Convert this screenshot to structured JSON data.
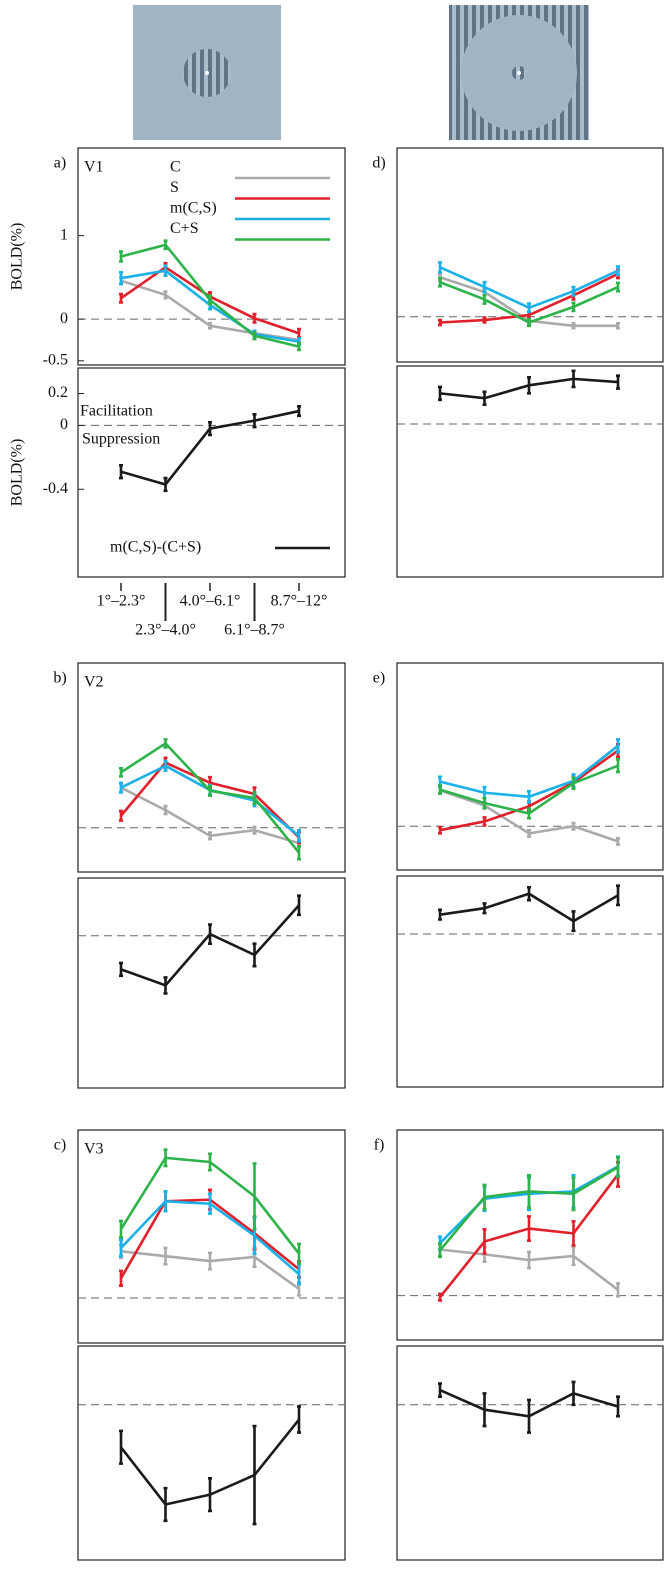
{
  "chart_data": [
    {
      "type": "line",
      "panel_label": "a)",
      "region": "V1",
      "ylabel": "BOLD(%)",
      "ylim": [
        -0.55,
        2.05
      ],
      "yticks": [
        -0.5,
        0,
        1
      ],
      "reference_line": 0,
      "series": [
        {
          "name": "C",
          "color": "#aaaaaa",
          "values": [
            0.46,
            0.29,
            -0.08,
            -0.17,
            -0.25
          ],
          "errors": [
            0.04,
            0.04,
            0.03,
            0.03,
            0.03
          ]
        },
        {
          "name": "S",
          "color": "#e0202a",
          "values": [
            0.25,
            0.62,
            0.27,
            0.01,
            -0.17
          ],
          "errors": [
            0.05,
            0.05,
            0.05,
            0.05,
            0.05
          ]
        },
        {
          "name": "m(C,S)",
          "color": "#1ab0e8",
          "values": [
            0.49,
            0.58,
            0.17,
            -0.18,
            -0.27
          ],
          "errors": [
            0.07,
            0.06,
            0.05,
            0.04,
            0.04
          ]
        },
        {
          "name": "C+S",
          "color": "#2db34a",
          "values": [
            0.75,
            0.89,
            0.23,
            -0.2,
            -0.33
          ],
          "errors": [
            0.06,
            0.05,
            0.05,
            0.04,
            0.04
          ]
        }
      ]
    },
    {
      "type": "line",
      "ylabel": "BOLD(%)",
      "ylim": [
        -0.95,
        0.36
      ],
      "yticks": [
        -0.4,
        0,
        0.2
      ],
      "reference_line": 0,
      "categories": [
        "1°–2.3°",
        "2.3°–4.0°",
        "4.0°–6.1°",
        "6.1°–8.7°",
        "8.7°–12°"
      ],
      "annotations": [
        "Facilitation",
        "Suppression"
      ],
      "series": [
        {
          "name": "m(C,S)-(C+S)",
          "color": "#1a1a1a",
          "values": [
            -0.29,
            -0.37,
            -0.02,
            0.03,
            0.09
          ],
          "errors": [
            0.04,
            0.04,
            0.04,
            0.04,
            0.03
          ]
        }
      ]
    },
    {
      "type": "line",
      "panel_label": "d)",
      "ylim": [
        -0.55,
        2.05
      ],
      "reference_line": 0,
      "series": [
        {
          "color": "#aaaaaa",
          "values": [
            0.48,
            0.3,
            -0.05,
            -0.11,
            -0.11
          ],
          "errors": [
            0.04,
            0.04,
            0.03,
            0.03,
            0.03
          ]
        },
        {
          "color": "#e0202a",
          "values": [
            -0.07,
            -0.04,
            0.02,
            0.26,
            0.52
          ],
          "errors": [
            0.03,
            0.03,
            0.04,
            0.05,
            0.05
          ]
        },
        {
          "color": "#1ab0e8",
          "values": [
            0.6,
            0.36,
            0.11,
            0.31,
            0.56
          ],
          "errors": [
            0.06,
            0.06,
            0.05,
            0.05,
            0.05
          ]
        },
        {
          "color": "#2db34a",
          "values": [
            0.42,
            0.21,
            -0.07,
            0.12,
            0.36
          ],
          "errors": [
            0.05,
            0.05,
            0.04,
            0.05,
            0.05
          ]
        }
      ]
    },
    {
      "type": "line",
      "ylim": [
        -0.95,
        0.36
      ],
      "reference_line": 0,
      "series": [
        {
          "color": "#1a1a1a",
          "values": [
            0.19,
            0.16,
            0.24,
            0.28,
            0.26
          ],
          "errors": [
            0.04,
            0.04,
            0.05,
            0.05,
            0.04
          ]
        }
      ]
    },
    {
      "type": "line",
      "panel_label": "b)",
      "region": "V2",
      "ylim": [
        -0.55,
        2.05
      ],
      "reference_line": 0,
      "series": [
        {
          "color": "#aaaaaa",
          "values": [
            0.5,
            0.22,
            -0.1,
            -0.03,
            -0.19
          ],
          "errors": [
            0.05,
            0.05,
            0.04,
            0.04,
            0.04
          ]
        },
        {
          "color": "#e0202a",
          "values": [
            0.15,
            0.81,
            0.56,
            0.42,
            -0.12
          ],
          "errors": [
            0.06,
            0.06,
            0.07,
            0.08,
            0.07
          ]
        },
        {
          "color": "#1ab0e8",
          "values": [
            0.5,
            0.77,
            0.47,
            0.34,
            -0.1
          ],
          "errors": [
            0.06,
            0.06,
            0.06,
            0.07,
            0.07
          ]
        },
        {
          "color": "#2db34a",
          "values": [
            0.69,
            1.05,
            0.46,
            0.37,
            -0.31
          ],
          "errors": [
            0.05,
            0.05,
            0.06,
            0.07,
            0.08
          ]
        }
      ]
    },
    {
      "type": "line",
      "ylim": [
        -0.95,
        0.36
      ],
      "reference_line": 0,
      "series": [
        {
          "color": "#1a1a1a",
          "values": [
            -0.21,
            -0.31,
            0.01,
            -0.12,
            0.19
          ],
          "errors": [
            0.04,
            0.05,
            0.06,
            0.07,
            0.06
          ]
        }
      ]
    },
    {
      "type": "line",
      "panel_label": "e)",
      "ylim": [
        -0.55,
        2.05
      ],
      "reference_line": 0,
      "series": [
        {
          "color": "#aaaaaa",
          "values": [
            0.45,
            0.26,
            -0.09,
            0,
            -0.19
          ],
          "errors": [
            0.04,
            0.04,
            0.04,
            0.04,
            0.04
          ]
        },
        {
          "color": "#e0202a",
          "values": [
            -0.05,
            0.06,
            0.25,
            0.55,
            0.95
          ],
          "errors": [
            0.04,
            0.05,
            0.06,
            0.07,
            0.08
          ]
        },
        {
          "color": "#1ab0e8",
          "values": [
            0.56,
            0.42,
            0.37,
            0.57,
            1.01
          ],
          "errors": [
            0.06,
            0.07,
            0.07,
            0.08,
            0.08
          ]
        },
        {
          "color": "#2db34a",
          "values": [
            0.46,
            0.29,
            0.16,
            0.54,
            0.76
          ],
          "errors": [
            0.05,
            0.06,
            0.06,
            0.07,
            0.08
          ]
        }
      ]
    },
    {
      "type": "line",
      "ylim": [
        -0.95,
        0.36
      ],
      "reference_line": 0,
      "series": [
        {
          "color": "#1a1a1a",
          "values": [
            0.12,
            0.16,
            0.25,
            0.08,
            0.24
          ],
          "errors": [
            0.03,
            0.03,
            0.04,
            0.06,
            0.06
          ]
        }
      ]
    },
    {
      "type": "line",
      "panel_label": "c)",
      "region": "V3",
      "ylim": [
        -0.55,
        2.05
      ],
      "reference_line": 0,
      "series": [
        {
          "color": "#aaaaaa",
          "values": [
            0.57,
            0.51,
            0.45,
            0.5,
            0.11
          ],
          "errors": [
            0.08,
            0.1,
            0.1,
            0.12,
            0.08
          ]
        },
        {
          "color": "#e0202a",
          "values": [
            0.24,
            1.18,
            1.2,
            0.79,
            0.35
          ],
          "errors": [
            0.09,
            0.12,
            0.12,
            0.2,
            0.1
          ]
        },
        {
          "color": "#1ab0e8",
          "values": [
            0.61,
            1.18,
            1.15,
            0.76,
            0.29
          ],
          "errors": [
            0.1,
            0.12,
            0.12,
            0.22,
            0.12
          ]
        },
        {
          "color": "#2db34a",
          "values": [
            0.84,
            1.71,
            1.66,
            1.24,
            0.54
          ],
          "errors": [
            0.1,
            0.1,
            0.1,
            0.4,
            0.12
          ]
        }
      ]
    },
    {
      "type": "line",
      "ylim": [
        -0.95,
        0.36
      ],
      "reference_line": 0,
      "series": [
        {
          "color": "#1a1a1a",
          "values": [
            -0.26,
            -0.61,
            -0.55,
            -0.43,
            -0.09
          ],
          "errors": [
            0.1,
            0.1,
            0.1,
            0.3,
            0.08
          ]
        }
      ]
    },
    {
      "type": "line",
      "panel_label": "f)",
      "ylim": [
        -0.55,
        2.05
      ],
      "reference_line": 0,
      "series": [
        {
          "color": "#aaaaaa",
          "values": [
            0.57,
            0.51,
            0.44,
            0.49,
            0.07
          ],
          "errors": [
            0.08,
            0.09,
            0.1,
            0.11,
            0.08
          ]
        },
        {
          "color": "#e0202a",
          "values": [
            -0.02,
            0.67,
            0.83,
            0.77,
            1.5
          ],
          "errors": [
            0.04,
            0.15,
            0.15,
            0.15,
            0.15
          ]
        },
        {
          "color": "#1ab0e8",
          "values": [
            0.65,
            1.2,
            1.26,
            1.29,
            1.6
          ],
          "errors": [
            0.08,
            0.15,
            0.2,
            0.2,
            0.12
          ]
        },
        {
          "color": "#2db34a",
          "values": [
            0.56,
            1.22,
            1.29,
            1.26,
            1.59
          ],
          "errors": [
            0.08,
            0.15,
            0.2,
            0.2,
            0.12
          ]
        }
      ]
    },
    {
      "type": "line",
      "ylim": [
        -0.95,
        0.36
      ],
      "reference_line": 0,
      "series": [
        {
          "color": "#1a1a1a",
          "values": [
            0.09,
            -0.03,
            -0.07,
            0.07,
            -0.01
          ],
          "errors": [
            0.04,
            0.1,
            0.1,
            0.07,
            0.06
          ]
        }
      ]
    }
  ]
}
